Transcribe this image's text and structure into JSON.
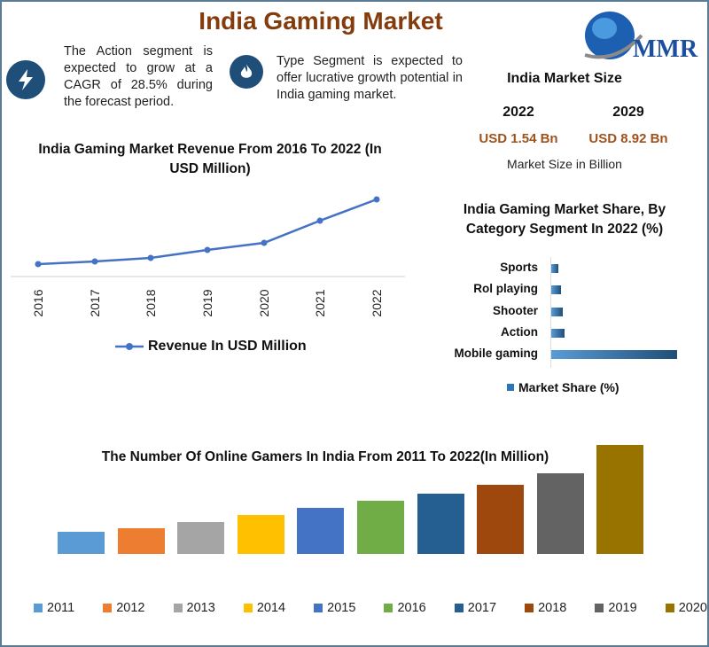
{
  "title": "India Gaming Market",
  "logo_text": "MMR",
  "highlights": [
    {
      "icon": "lightning-icon",
      "text": "The Action segment is expected to grow at a CAGR of 28.5% during the forecast period."
    },
    {
      "icon": "flame-icon",
      "text": "Type Segment is expected to offer lucrative growth potential in India gaming market."
    }
  ],
  "market_size": {
    "title": "India Market Size",
    "years": [
      "2022",
      "2029"
    ],
    "values": [
      "USD 1.54 Bn",
      "USD 8.92 Bn"
    ],
    "caption": "Market Size in Billion",
    "value_color": "#a0521c"
  },
  "chart_data": [
    {
      "type": "line",
      "title": "India Gaming Market Revenue From 2016 To 2022 (In USD Million)",
      "x": [
        "2016",
        "2017",
        "2018",
        "2019",
        "2020",
        "2021",
        "2022"
      ],
      "series": [
        {
          "name": "Revenue In USD Million",
          "values": [
            248,
            301,
            372,
            531,
            672,
            1115,
            1540
          ],
          "color": "#4472c4"
        }
      ],
      "y_axis_shown": false,
      "grid": false,
      "legend": "bottom"
    },
    {
      "type": "bar",
      "orientation": "horizontal",
      "title": "India Gaming Market Share, By Category Segment In 2022 (%)",
      "categories": [
        "Sports",
        "Rol playing",
        "Shooter",
        "Action",
        "Mobile gaming"
      ],
      "series": [
        {
          "name": "Market Share (%)",
          "values": [
            5,
            7,
            8.2,
            9.5,
            90
          ],
          "color": "#2e75b6"
        }
      ],
      "value_axis_shown": false,
      "legend": "bottom"
    },
    {
      "type": "bar",
      "title": "The Number Of Online Gamers In India From 2011 To 2022(In Million)",
      "categories": [
        "2011",
        "2012",
        "2013",
        "2014",
        "2015",
        "2016",
        "2017",
        "2018",
        "2019",
        "2020"
      ],
      "values": [
        75,
        87,
        108,
        132,
        156,
        180,
        204,
        234,
        273,
        369
      ],
      "colors": [
        "#5b9bd5",
        "#ed7d31",
        "#a5a5a5",
        "#ffc000",
        "#4472c4",
        "#70ad47",
        "#255e91",
        "#9e480e",
        "#636363",
        "#997300"
      ],
      "y_axis_shown": false,
      "legend": "bottom"
    }
  ]
}
